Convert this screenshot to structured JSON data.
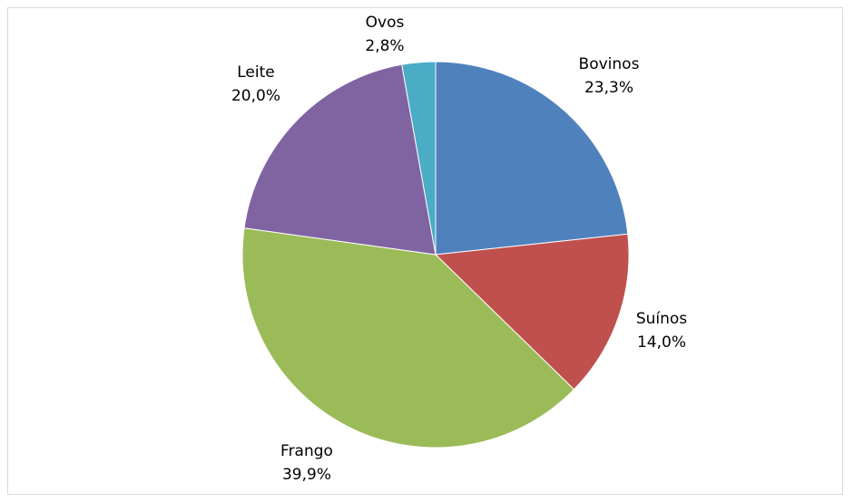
{
  "chart_data": {
    "type": "pie",
    "slices": [
      {
        "name": "Bovinos",
        "value": 23.3,
        "label": "23,3%",
        "color": "#4f81bd"
      },
      {
        "name": "Suínos",
        "value": 14.0,
        "label": "14,0%",
        "color": "#c0504d"
      },
      {
        "name": "Frango",
        "value": 39.9,
        "label": "39,9%",
        "color": "#9bbb59"
      },
      {
        "name": "Leite",
        "value": 20.0,
        "label": "20,0%",
        "color": "#8064a2"
      },
      {
        "name": "Ovos",
        "value": 2.8,
        "label": "2,8%",
        "color": "#4bacc6"
      }
    ],
    "start_angle": "12 o'clock",
    "direction": "clockwise",
    "legend": "none",
    "title": ""
  }
}
